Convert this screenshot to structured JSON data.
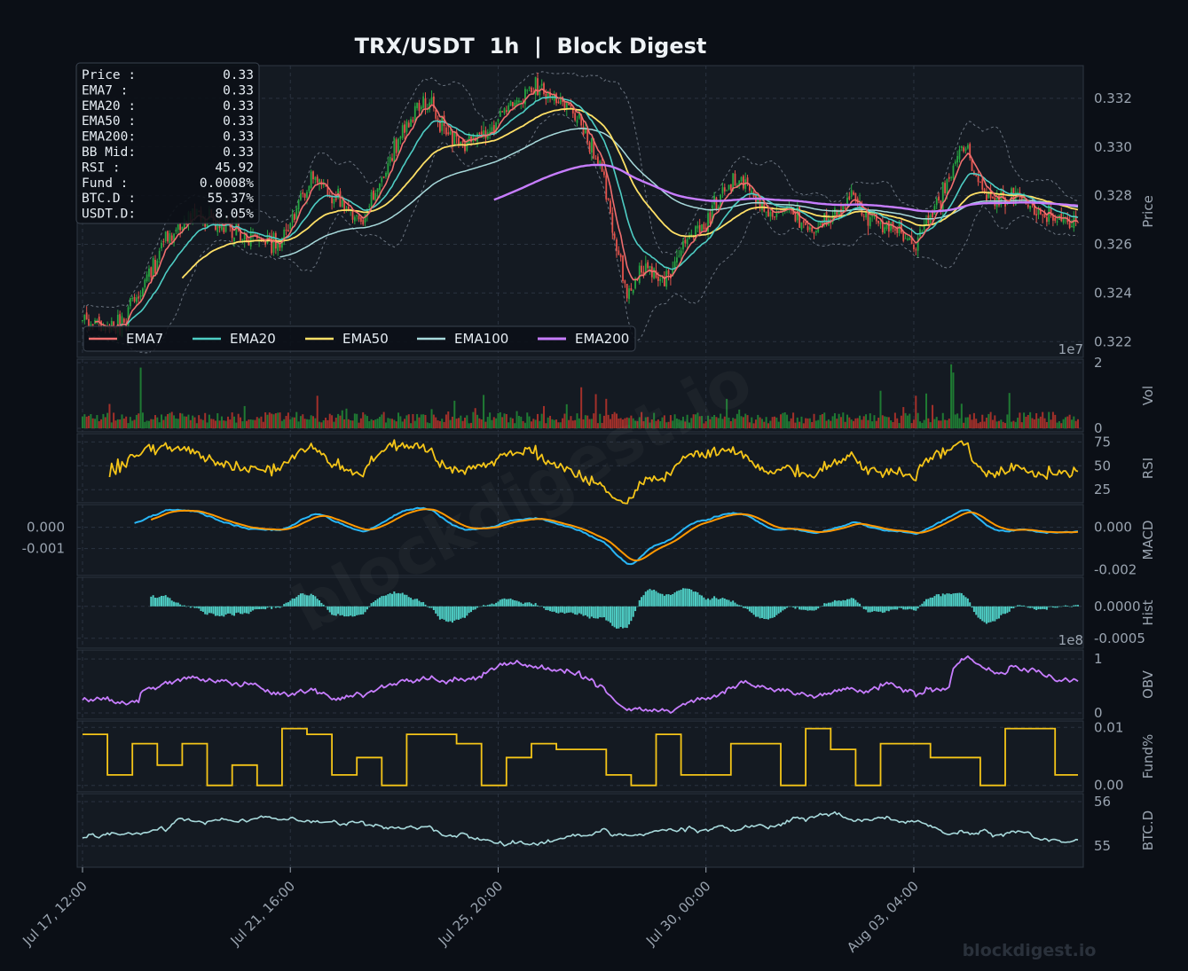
{
  "title": "TRX/USDT  1h  |  Block Digest",
  "watermark": "blockdigest.io",
  "footer": "blockdigest.io",
  "colors": {
    "bg": "#0b0f16",
    "panel": "#141a22",
    "grid": "#2a3340",
    "text": "#9aa4b0",
    "up": "#26a641",
    "down": "#e5534b",
    "ema7": "#f06e6e",
    "ema20": "#4ecdc4",
    "ema50": "#ffe066",
    "ema100": "#a8dadc",
    "ema200": "#c77dff",
    "rsi": "#f5c518",
    "macd": "#29b6f6",
    "signal": "#ff9800",
    "hist": "#4ecdc4",
    "obv": "#c77dff",
    "fund": "#f5c518",
    "btcd": "#a8dadc"
  },
  "info_box": [
    {
      "label": "Price :",
      "value": "0.33"
    },
    {
      "label": "EMA7  :",
      "value": "0.33"
    },
    {
      "label": "EMA20 :",
      "value": "0.33"
    },
    {
      "label": "EMA50 :",
      "value": "0.33"
    },
    {
      "label": "EMA200:",
      "value": "0.33"
    },
    {
      "label": "BB Mid:",
      "value": "0.33"
    },
    {
      "label": "RSI   :",
      "value": "45.92"
    },
    {
      "label": "Fund  :",
      "value": "0.0008%"
    },
    {
      "label": "BTC.D :",
      "value": "55.37%"
    },
    {
      "label": "USDT.D:",
      "value": "8.05%"
    }
  ],
  "legend": [
    "EMA7",
    "EMA20",
    "EMA50",
    "EMA100",
    "EMA200"
  ],
  "x_ticks": [
    "Jul 17, 12:00",
    "Jul 21, 16:00",
    "Jul 25, 20:00",
    "Jul 30, 00:00",
    "Aug 03, 04:00"
  ],
  "chart_data": {
    "type": "line",
    "timeframe": "1h",
    "bars": 480,
    "x_ticks": [
      "Jul 17, 12:00",
      "Jul 21, 16:00",
      "Jul 25, 20:00",
      "Jul 30, 00:00",
      "Aug 03, 04:00"
    ],
    "x_tick_bars": [
      0,
      100,
      200,
      300,
      400
    ],
    "panels": [
      {
        "id": "price",
        "ylabel": "Price",
        "ylim": [
          0.3215,
          0.3332
        ],
        "ticks": [
          "0.322",
          "0.324",
          "0.326",
          "0.328",
          "0.330",
          "0.332"
        ],
        "tick_values": [
          0.322,
          0.324,
          0.326,
          0.328,
          0.33,
          0.332
        ],
        "anchors_x": [
          0,
          15,
          25,
          40,
          55,
          75,
          95,
          110,
          120,
          135,
          150,
          165,
          175,
          185,
          198,
          205,
          212,
          218,
          222,
          230,
          240,
          250,
          258,
          262,
          268,
          280,
          290,
          300,
          310,
          320,
          330,
          340,
          350,
          360,
          370,
          380,
          390,
          400,
          410,
          420,
          425,
          430,
          440,
          450,
          460,
          470,
          479
        ],
        "anchors_y": [
          0.323,
          0.3225,
          0.3235,
          0.3262,
          0.3272,
          0.3265,
          0.326,
          0.3288,
          0.328,
          0.3268,
          0.33,
          0.332,
          0.3306,
          0.3302,
          0.3306,
          0.3318,
          0.332,
          0.3325,
          0.3322,
          0.332,
          0.331,
          0.329,
          0.3255,
          0.324,
          0.325,
          0.3245,
          0.3262,
          0.3268,
          0.3285,
          0.3286,
          0.327,
          0.3275,
          0.3265,
          0.327,
          0.328,
          0.327,
          0.3268,
          0.326,
          0.3275,
          0.3292,
          0.3302,
          0.3285,
          0.3278,
          0.328,
          0.3275,
          0.327,
          0.327
        ]
      },
      {
        "id": "vol",
        "ylabel": "Vol",
        "ylim": [
          0,
          20000000
        ],
        "ticks": [
          "0",
          "2"
        ],
        "tick_values": [
          0,
          20000000
        ],
        "multiplier": "1e7"
      },
      {
        "id": "rsi",
        "ylabel": "RSI",
        "ylim": [
          15,
          80
        ],
        "ticks": [
          "25",
          "50",
          "75"
        ],
        "tick_values": [
          25,
          50,
          75
        ]
      },
      {
        "id": "macd",
        "ylabel": "MACD",
        "ylim": [
          -0.0021,
          0.0009
        ],
        "ticks": [
          "0.000",
          "-0.001"
        ],
        "tick_values": [
          0,
          -0.001
        ],
        "right_ticks": [
          "0.000",
          "-0.002"
        ],
        "right_tick_values": [
          0,
          -0.002
        ]
      },
      {
        "id": "hist",
        "ylabel": "Hist",
        "ylim": [
          -0.0006,
          0.0004
        ],
        "ticks": [
          "0.0000",
          "-0.0005"
        ],
        "tick_values": [
          0,
          -0.0005
        ]
      },
      {
        "id": "obv",
        "ylabel": "OBV",
        "ylim": [
          -0.05,
          1.1
        ],
        "ticks": [
          "0",
          "1"
        ],
        "tick_values": [
          0,
          1
        ],
        "multiplier": "1e8"
      },
      {
        "id": "fund",
        "ylabel": "Fund%",
        "ylim": [
          -0.0005,
          0.0105
        ],
        "ticks": [
          "0.00",
          "0.01"
        ],
        "tick_values": [
          0,
          0.01
        ]
      },
      {
        "id": "btcd",
        "ylabel": "BTC.D",
        "ylim": [
          54.6,
          56.1
        ],
        "ticks": [
          "55",
          "56"
        ],
        "tick_values": [
          55,
          56
        ]
      }
    ]
  }
}
